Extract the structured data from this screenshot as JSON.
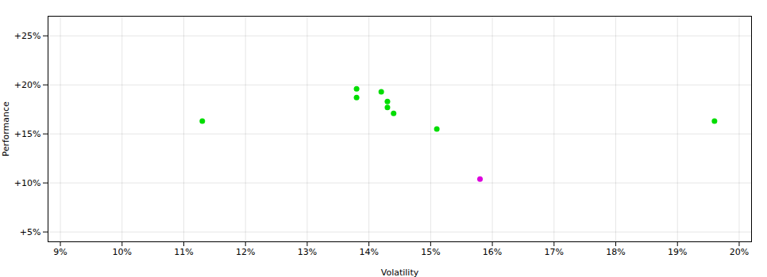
{
  "chart_data": {
    "type": "scatter",
    "xlabel": "Volatility",
    "ylabel": "Performance",
    "xlim": [
      0.088,
      0.202
    ],
    "ylim": [
      0.04,
      0.27
    ],
    "xticks": [
      {
        "value": 0.09,
        "label": "9%"
      },
      {
        "value": 0.1,
        "label": "10%"
      },
      {
        "value": 0.11,
        "label": "11%"
      },
      {
        "value": 0.12,
        "label": "12%"
      },
      {
        "value": 0.13,
        "label": "13%"
      },
      {
        "value": 0.14,
        "label": "14%"
      },
      {
        "value": 0.15,
        "label": "15%"
      },
      {
        "value": 0.16,
        "label": "16%"
      },
      {
        "value": 0.17,
        "label": "17%"
      },
      {
        "value": 0.18,
        "label": "18%"
      },
      {
        "value": 0.19,
        "label": "19%"
      },
      {
        "value": 0.2,
        "label": "20%"
      }
    ],
    "yticks": [
      {
        "value": 0.05,
        "label": "+5%"
      },
      {
        "value": 0.1,
        "label": "+10%"
      },
      {
        "value": 0.15,
        "label": "+15%"
      },
      {
        "value": 0.2,
        "label": "+20%"
      },
      {
        "value": 0.25,
        "label": "+25%"
      }
    ],
    "grid": true,
    "series": [
      {
        "color": "#00dd00",
        "x": [
          0.113,
          0.138,
          0.138,
          0.142,
          0.143,
          0.143,
          0.144,
          0.151,
          0.196
        ],
        "y": [
          0.163,
          0.196,
          0.187,
          0.193,
          0.183,
          0.177,
          0.171,
          0.155,
          0.163
        ]
      },
      {
        "color": "#dd00dd",
        "x": [
          0.158
        ],
        "y": [
          0.104
        ]
      }
    ]
  }
}
